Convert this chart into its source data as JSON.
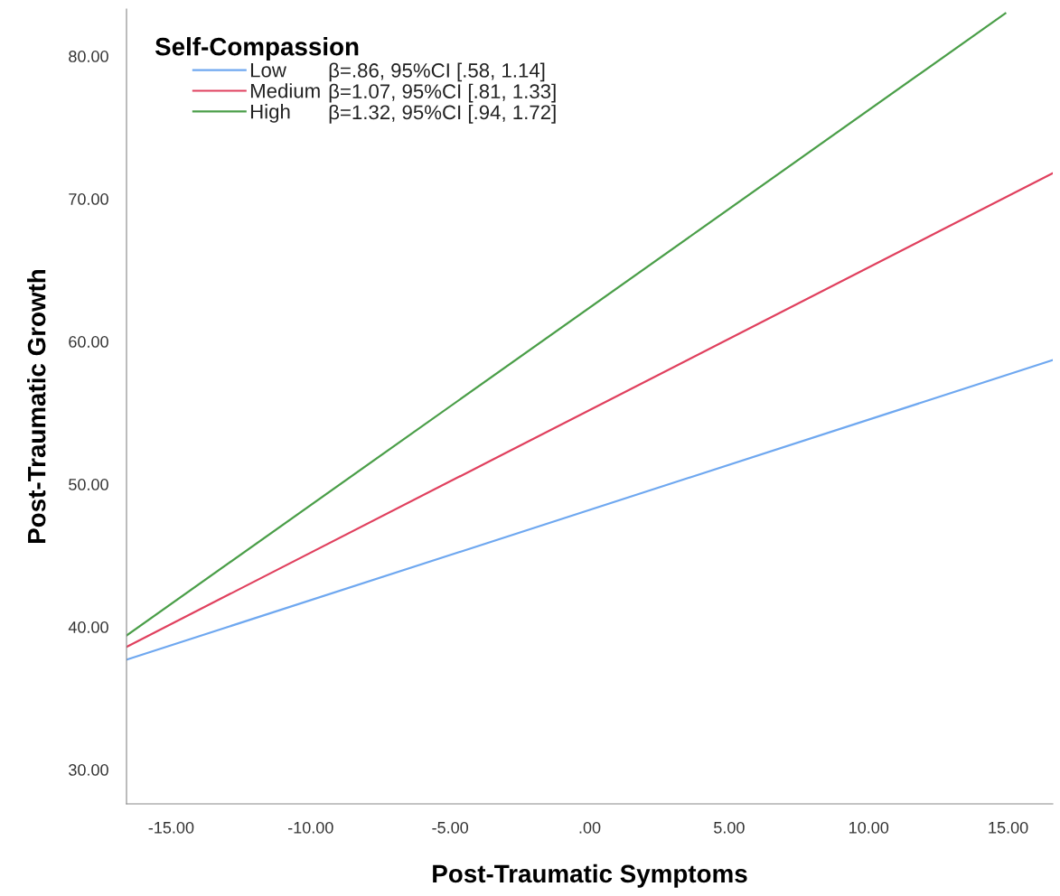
{
  "chart_data": {
    "type": "line",
    "xlabel": "Post-Traumatic Symptoms",
    "ylabel": "Post-Traumatic Growth",
    "legend_title": "Self-Compassion",
    "x": [
      -16.6,
      16.6
    ],
    "series": [
      {
        "name": "Low",
        "color": "#6fa8f0",
        "values": [
          37.7,
          58.7
        ]
      },
      {
        "name": "Medium",
        "color": "#e0405e",
        "values": [
          38.6,
          71.8
        ]
      },
      {
        "name": "High",
        "color": "#4a9e48",
        "x": [
          -16.6,
          14.9
        ],
        "values": [
          39.4,
          83.0
        ]
      }
    ],
    "annotations": [
      "β=.86, 95%CI [.58, 1.14]",
      "β=1.07, 95%CI [.81, 1.33]",
      "β=1.32, 95%CI [.94, 1.72]"
    ],
    "xlim": [
      -16.6,
      16.6
    ],
    "ylim": [
      27.6,
      83.3
    ],
    "xticks": [
      {
        "value": -15,
        "label": "-15.00"
      },
      {
        "value": -10,
        "label": "-10.00"
      },
      {
        "value": -5,
        "label": "-5.00"
      },
      {
        "value": 0,
        "label": ".00"
      },
      {
        "value": 5,
        "label": "5.00"
      },
      {
        "value": 10,
        "label": "10.00"
      },
      {
        "value": 15,
        "label": "15.00"
      }
    ],
    "yticks": [
      {
        "value": 30,
        "label": "30.00"
      },
      {
        "value": 40,
        "label": "40.00"
      },
      {
        "value": 50,
        "label": "50.00"
      },
      {
        "value": 60,
        "label": "60.00"
      },
      {
        "value": 70,
        "label": "70.00"
      },
      {
        "value": 80,
        "label": "80.00"
      }
    ],
    "grid": false,
    "legend": "top left",
    "marker": "none",
    "line_style": "solid"
  }
}
